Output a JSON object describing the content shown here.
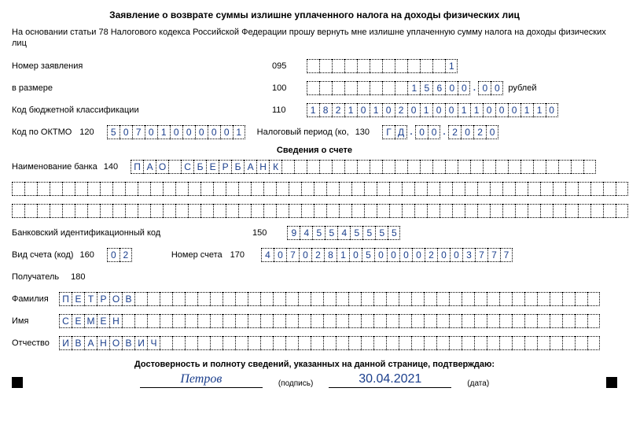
{
  "title": "Заявление о возврате суммы излишне уплаченного налога на доходы физических лиц",
  "subtitle": "На основании статьи 78 Налогового кодекса Российской Федерации прошу вернуть мне излишне уплаченную сумму налога на доходы физических лиц",
  "fields": {
    "app_number": {
      "label": "Номер заявления",
      "code": "095",
      "cells": [
        "",
        "",
        "",
        "",
        "",
        "",
        "",
        "",
        "",
        "",
        "",
        "1"
      ]
    },
    "amount": {
      "label": " в размере",
      "code": "100",
      "int": [
        "",
        "",
        "",
        "",
        "",
        "",
        "",
        "",
        "1",
        "5",
        "6",
        "0",
        "0"
      ],
      "dec": [
        "0",
        "0"
      ],
      "suffix": "рублей"
    },
    "kbk": {
      "label": "Код бюджетной классификации",
      "code": "110",
      "cells": [
        "1",
        "8",
        "2",
        "1",
        "0",
        "1",
        "0",
        "2",
        "0",
        "1",
        "0",
        "0",
        "1",
        "1",
        "0",
        "0",
        "0",
        "1",
        "1",
        "0"
      ]
    },
    "oktmo": {
      "label": "Код по ОКТМО",
      "code": "120",
      "cells": [
        "5",
        "0",
        "7",
        "0",
        "1",
        "0",
        "0",
        "0",
        "0",
        "0",
        "1"
      ]
    },
    "tax_period": {
      "label": "Налоговый период (ко,",
      "code": "130",
      "g1": [
        "Г",
        "Д"
      ],
      "g2": [
        "0",
        "0"
      ],
      "g3": [
        "2",
        "0",
        "2",
        "0"
      ]
    },
    "account_header": "Сведения о счете",
    "bank_name": {
      "label": "Наименование банка",
      "code": "140",
      "cells": [
        "П",
        "А",
        "О",
        "",
        "С",
        "Б",
        "Е",
        "Р",
        "Б",
        "А",
        "Н",
        "К",
        "",
        "",
        "",
        "",
        "",
        "",
        "",
        "",
        "",
        "",
        "",
        "",
        "",
        "",
        "",
        "",
        "",
        "",
        "",
        "",
        "",
        "",
        "",
        "",
        ""
      ]
    },
    "bank_row2_len": 49,
    "bank_row3_len": 49,
    "bik": {
      "label": "Банковский идентификационный код",
      "code": "150",
      "cells": [
        "9",
        "4",
        "5",
        "5",
        "4",
        "5",
        "5",
        "5",
        "5"
      ]
    },
    "acct_type": {
      "label": "Вид счета (код)",
      "code": "160",
      "cells": [
        "0",
        "2"
      ]
    },
    "acct_num": {
      "label": "Номер счета",
      "code": "170",
      "cells": [
        "4",
        "0",
        "7",
        "0",
        "2",
        "8",
        "1",
        "0",
        "5",
        "0",
        "0",
        "0",
        "0",
        "2",
        "0",
        "0",
        "3",
        "7",
        "7",
        "7"
      ]
    },
    "recipient": {
      "label": "Получатель",
      "code": "180"
    },
    "surname": {
      "label": "Фамилия",
      "cells": [
        "П",
        "Е",
        "Т",
        "Р",
        "О",
        "В",
        "",
        "",
        "",
        "",
        "",
        "",
        "",
        "",
        "",
        "",
        "",
        "",
        "",
        "",
        "",
        "",
        "",
        "",
        "",
        "",
        "",
        "",
        "",
        "",
        "",
        "",
        "",
        "",
        "",
        "",
        "",
        "",
        "",
        "",
        "",
        "",
        ""
      ]
    },
    "name": {
      "label": "Имя",
      "cells": [
        "С",
        "Е",
        "М",
        "Е",
        "Н",
        "",
        "",
        "",
        "",
        "",
        "",
        "",
        "",
        "",
        "",
        "",
        "",
        "",
        "",
        "",
        "",
        "",
        "",
        "",
        "",
        "",
        "",
        "",
        "",
        "",
        "",
        "",
        "",
        "",
        "",
        "",
        "",
        "",
        "",
        "",
        "",
        "",
        ""
      ]
    },
    "patronymic": {
      "label": "Отчество",
      "cells": [
        "И",
        "В",
        "А",
        "Н",
        "О",
        "В",
        "И",
        "Ч",
        "",
        "",
        "",
        "",
        "",
        "",
        "",
        "",
        "",
        "",
        "",
        "",
        "",
        "",
        "",
        "",
        "",
        "",
        "",
        "",
        "",
        "",
        "",
        "",
        "",
        "",
        "",
        "",
        "",
        "",
        "",
        "",
        "",
        "",
        ""
      ]
    }
  },
  "footer": {
    "text": "Достоверность и полноту сведений, указанных на данной странице, подтверждаю:",
    "signature": "Петров",
    "sig_caption": "(подпись)",
    "date": "30.04.2021",
    "date_caption": "(дата)"
  },
  "colors": {
    "ink": "#1a3e8c"
  }
}
